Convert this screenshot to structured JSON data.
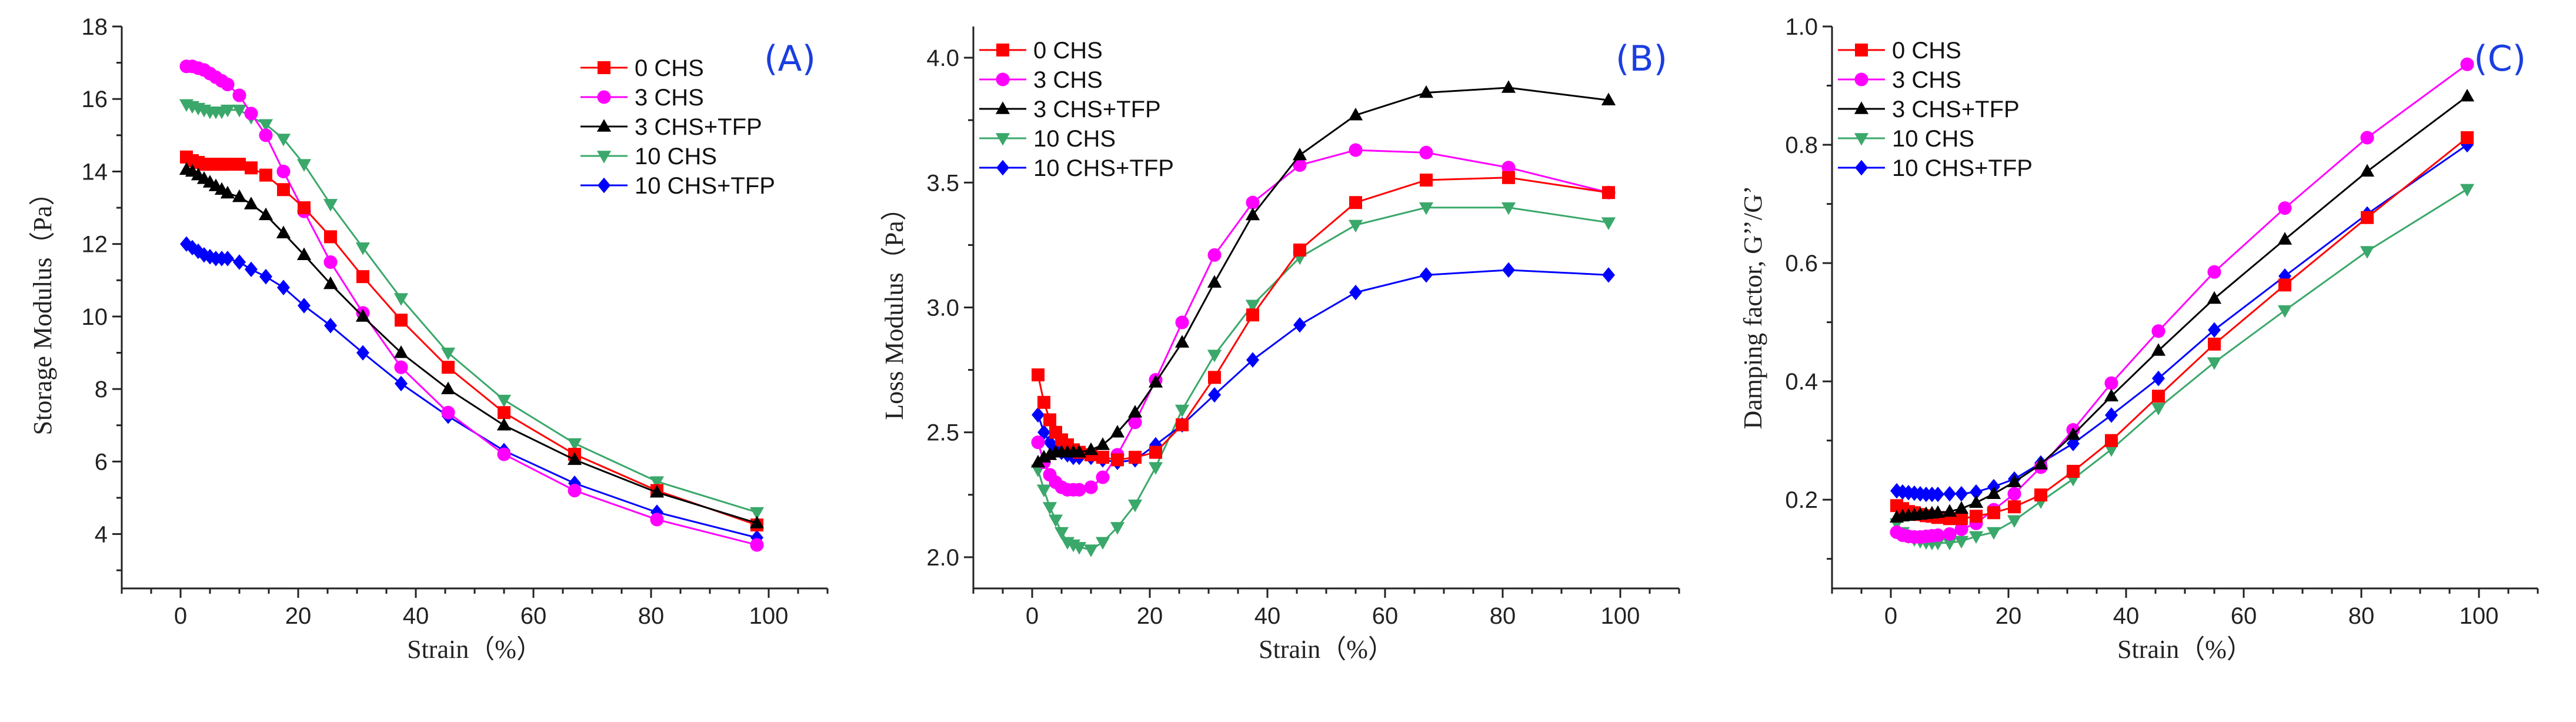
{
  "colors": {
    "0 CHS": "#ff0000",
    "3 CHS": "#ff00ff",
    "3 CHS+TFP": "#000000",
    "10 CHS": "#3aa86a",
    "10 CHS+TFP": "#0000ff",
    "panel_label": "#1a3ee0"
  },
  "chart_data": [
    {
      "type": "line",
      "panel_label": "(A)",
      "xlabel": "Strain（%）",
      "ylabel": "Storage Modulus（Pa）",
      "xlim": [
        -10,
        110
      ],
      "ylim": [
        2.5,
        18
      ],
      "xticks": [
        0,
        20,
        40,
        60,
        80,
        100
      ],
      "yticks": [
        4,
        6,
        8,
        10,
        12,
        14,
        16,
        18
      ],
      "ytick_labels": [
        "4",
        "6",
        "8",
        "10",
        "12",
        "14",
        "16",
        "18"
      ],
      "legend_position": "top-right",
      "x": [
        1,
        2,
        3,
        4,
        5,
        6,
        7,
        8,
        10,
        12,
        14.5,
        17.5,
        21,
        25.5,
        31,
        37.5,
        45.5,
        55,
        67,
        81,
        98
      ],
      "series": [
        {
          "name": "0 CHS",
          "marker": "square",
          "values": [
            14.4,
            14.3,
            14.25,
            14.2,
            14.2,
            14.2,
            14.2,
            14.2,
            14.2,
            14.1,
            13.9,
            13.5,
            13.0,
            12.2,
            11.1,
            9.9,
            8.6,
            7.35,
            6.2,
            5.2,
            4.25
          ]
        },
        {
          "name": "3 CHS",
          "marker": "circle",
          "values": [
            16.9,
            16.9,
            16.85,
            16.8,
            16.7,
            16.6,
            16.5,
            16.4,
            16.1,
            15.6,
            15.0,
            14.0,
            12.9,
            11.5,
            10.1,
            8.6,
            7.35,
            6.2,
            5.2,
            4.4,
            3.7
          ]
        },
        {
          "name": "3 CHS+TFP",
          "marker": "triangle-up",
          "values": [
            14.05,
            14.0,
            13.9,
            13.8,
            13.7,
            13.6,
            13.5,
            13.4,
            13.3,
            13.1,
            12.8,
            12.3,
            11.7,
            10.9,
            10.0,
            9.0,
            8.0,
            7.0,
            6.05,
            5.15,
            4.3
          ]
        },
        {
          "name": "10 CHS",
          "marker": "triangle-down",
          "values": [
            15.85,
            15.8,
            15.75,
            15.7,
            15.65,
            15.65,
            15.65,
            15.7,
            15.7,
            15.5,
            15.3,
            14.9,
            14.2,
            13.1,
            11.9,
            10.5,
            9.0,
            7.7,
            6.5,
            5.45,
            4.6
          ]
        },
        {
          "name": "10 CHS+TFP",
          "marker": "diamond",
          "values": [
            12.0,
            11.9,
            11.8,
            11.7,
            11.65,
            11.6,
            11.6,
            11.6,
            11.5,
            11.3,
            11.1,
            10.8,
            10.3,
            9.75,
            9.0,
            8.15,
            7.25,
            6.3,
            5.4,
            4.6,
            3.9
          ]
        }
      ]
    },
    {
      "type": "line",
      "panel_label": "(B)",
      "xlabel": "Strain（%）",
      "ylabel": "Loss Modulus（Pa）",
      "xlim": [
        -10,
        110
      ],
      "ylim": [
        1.875,
        4.125
      ],
      "xticks": [
        0,
        20,
        40,
        60,
        80,
        100
      ],
      "yticks": [
        2.0,
        2.5,
        3.0,
        3.5,
        4.0
      ],
      "ytick_labels": [
        "2.0",
        "2.5",
        "3.0",
        "3.5",
        "4.0"
      ],
      "legend_position": "top-left",
      "x": [
        1,
        2,
        3,
        4,
        5,
        6,
        7,
        8,
        10,
        12,
        14.5,
        17.5,
        21,
        25.5,
        31,
        37.5,
        45.5,
        55,
        67,
        81,
        98
      ],
      "series": [
        {
          "name": "0 CHS",
          "marker": "square",
          "values": [
            2.73,
            2.62,
            2.55,
            2.5,
            2.47,
            2.45,
            2.43,
            2.42,
            2.41,
            2.4,
            2.39,
            2.4,
            2.42,
            2.53,
            2.72,
            2.97,
            3.23,
            3.42,
            3.51,
            3.52,
            3.46
          ]
        },
        {
          "name": "3 CHS",
          "marker": "circle",
          "values": [
            2.46,
            2.38,
            2.33,
            2.3,
            2.28,
            2.27,
            2.27,
            2.27,
            2.28,
            2.32,
            2.41,
            2.54,
            2.71,
            2.94,
            3.21,
            3.42,
            3.57,
            3.63,
            3.62,
            3.56,
            3.46
          ]
        },
        {
          "name": "3 CHS+TFP",
          "marker": "triangle-up",
          "values": [
            2.38,
            2.4,
            2.41,
            2.42,
            2.42,
            2.42,
            2.42,
            2.42,
            2.43,
            2.45,
            2.5,
            2.58,
            2.7,
            2.86,
            3.1,
            3.37,
            3.61,
            3.77,
            3.86,
            3.88,
            3.83
          ]
        },
        {
          "name": "10 CHS",
          "marker": "triangle-down",
          "values": [
            2.35,
            2.27,
            2.2,
            2.15,
            2.1,
            2.06,
            2.05,
            2.04,
            2.03,
            2.06,
            2.12,
            2.21,
            2.36,
            2.59,
            2.81,
            3.01,
            3.2,
            3.33,
            3.4,
            3.4,
            3.34
          ]
        },
        {
          "name": "10 CHS+TFP",
          "marker": "diamond",
          "values": [
            2.57,
            2.5,
            2.46,
            2.43,
            2.42,
            2.41,
            2.4,
            2.4,
            2.4,
            2.39,
            2.38,
            2.39,
            2.45,
            2.53,
            2.65,
            2.79,
            2.93,
            3.06,
            3.13,
            3.15,
            3.13
          ]
        }
      ]
    },
    {
      "type": "line",
      "panel_label": "(C)",
      "xlabel": "Strain（%）",
      "ylabel": "Damping factor, G’’/G’",
      "xlim": [
        -10,
        110
      ],
      "ylim": [
        0.05,
        1.0
      ],
      "xticks": [
        0,
        20,
        40,
        60,
        80,
        100
      ],
      "yticks": [
        0.2,
        0.4,
        0.6,
        0.8,
        1.0
      ],
      "ytick_labels": [
        "0.2",
        "0.4",
        "0.6",
        "0.8",
        "1.0"
      ],
      "legend_position": "top-left",
      "x": [
        1,
        2,
        3,
        4,
        5,
        6,
        7,
        8,
        10,
        12,
        14.5,
        17.5,
        21,
        25.5,
        31,
        37.5,
        45.5,
        55,
        67,
        81,
        98
      ],
      "series": [
        {
          "name": "0 CHS",
          "marker": "square",
          "values": [
            0.19,
            0.185,
            0.18,
            0.178,
            0.175,
            0.173,
            0.172,
            0.17,
            0.168,
            0.168,
            0.172,
            0.178,
            0.188,
            0.208,
            0.248,
            0.3,
            0.375,
            0.463,
            0.563,
            0.677,
            0.812
          ]
        },
        {
          "name": "3 CHS",
          "marker": "circle",
          "values": [
            0.145,
            0.14,
            0.138,
            0.137,
            0.137,
            0.138,
            0.139,
            0.14,
            0.142,
            0.15,
            0.16,
            0.183,
            0.21,
            0.255,
            0.318,
            0.397,
            0.485,
            0.585,
            0.693,
            0.812,
            0.936
          ]
        },
        {
          "name": "3 CHS+TFP",
          "marker": "triangle-up",
          "values": [
            0.17,
            0.172,
            0.173,
            0.174,
            0.175,
            0.176,
            0.177,
            0.178,
            0.18,
            0.185,
            0.195,
            0.21,
            0.23,
            0.26,
            0.31,
            0.375,
            0.452,
            0.54,
            0.64,
            0.755,
            0.882
          ]
        },
        {
          "name": "10 CHS",
          "marker": "triangle-down",
          "values": [
            0.16,
            0.145,
            0.138,
            0.133,
            0.13,
            0.128,
            0.127,
            0.127,
            0.127,
            0.13,
            0.138,
            0.145,
            0.165,
            0.197,
            0.235,
            0.285,
            0.355,
            0.432,
            0.52,
            0.62,
            0.725
          ]
        },
        {
          "name": "10 CHS+TFP",
          "marker": "diamond",
          "values": [
            0.215,
            0.213,
            0.212,
            0.211,
            0.21,
            0.209,
            0.209,
            0.209,
            0.21,
            0.21,
            0.213,
            0.222,
            0.235,
            0.262,
            0.295,
            0.343,
            0.405,
            0.487,
            0.578,
            0.683,
            0.8
          ]
        }
      ]
    }
  ]
}
